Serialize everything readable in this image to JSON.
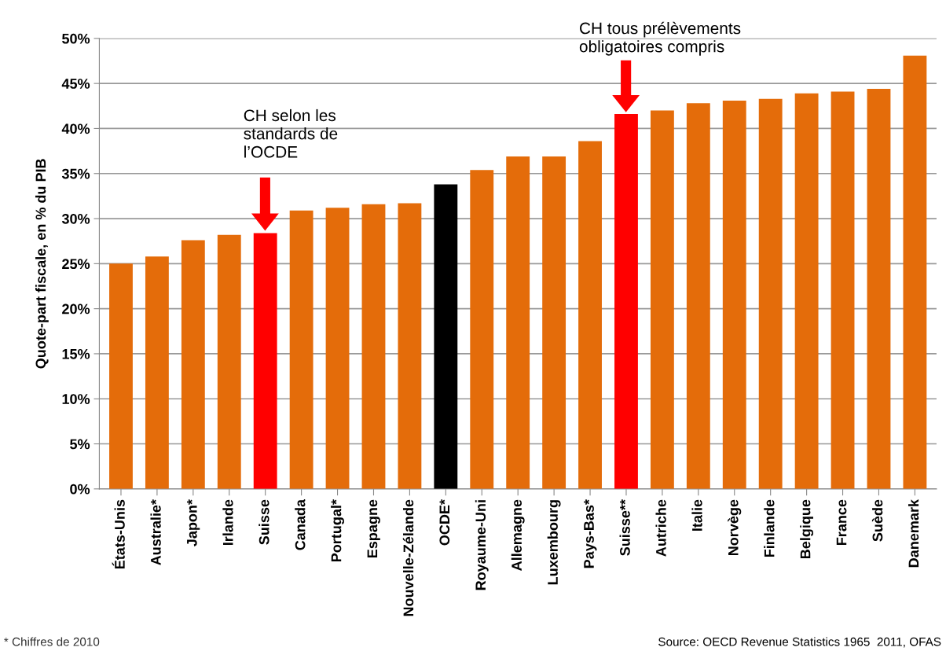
{
  "chart_data": {
    "type": "bar",
    "ylabel": "Quote-part fiscale, en % du PIB",
    "categories": [
      "États-Unis",
      "Australie*",
      "Japon*",
      "Irlande",
      "Suisse",
      "Canada",
      "Portugal*",
      "Espagne",
      "Nouvelle-Zélande",
      "OCDE*",
      "Royaume-Uni",
      "Allemagne",
      "Luxembourg",
      "Pays-Bas*",
      "Suisse**",
      "Autriche",
      "Italie",
      "Norvège",
      "Finlande",
      "Belgique",
      "France",
      "Suède",
      "Danemark"
    ],
    "values": [
      25.0,
      25.8,
      27.6,
      28.2,
      28.4,
      30.9,
      31.2,
      31.6,
      31.7,
      33.8,
      35.4,
      36.9,
      36.9,
      38.6,
      41.6,
      42.0,
      42.8,
      43.1,
      43.3,
      43.9,
      44.1,
      44.4,
      48.1
    ],
    "colors": [
      "#e46c0a",
      "#e46c0a",
      "#e46c0a",
      "#e46c0a",
      "#ff0000",
      "#e46c0a",
      "#e46c0a",
      "#e46c0a",
      "#e46c0a",
      "#000000",
      "#e46c0a",
      "#e46c0a",
      "#e46c0a",
      "#e46c0a",
      "#ff0000",
      "#e46c0a",
      "#e46c0a",
      "#e46c0a",
      "#e46c0a",
      "#e46c0a",
      "#e46c0a",
      "#e46c0a",
      "#e46c0a"
    ],
    "ylim": [
      0,
      50
    ],
    "yticks": [
      {
        "value": 0,
        "label": "0%"
      },
      {
        "value": 5,
        "label": "5%"
      },
      {
        "value": 10,
        "label": "10%"
      },
      {
        "value": 15,
        "label": "15%"
      },
      {
        "value": 20,
        "label": "20%"
      },
      {
        "value": 25,
        "label": "25%"
      },
      {
        "value": 30,
        "label": "30%"
      },
      {
        "value": 35,
        "label": "35%"
      },
      {
        "value": 40,
        "label": "40%"
      },
      {
        "value": 45,
        "label": "45%"
      },
      {
        "value": 50,
        "label": "50%"
      }
    ],
    "grid": "y",
    "legend": false,
    "annotations": [
      "CH selon les\nstandards de\nl’OCDE",
      "CH tous prélèvements\nobligatoires compris",
      "* Chiffres de 2010",
      "Source: OECD Revenue Statistics 1965  2011, OFAS"
    ]
  }
}
